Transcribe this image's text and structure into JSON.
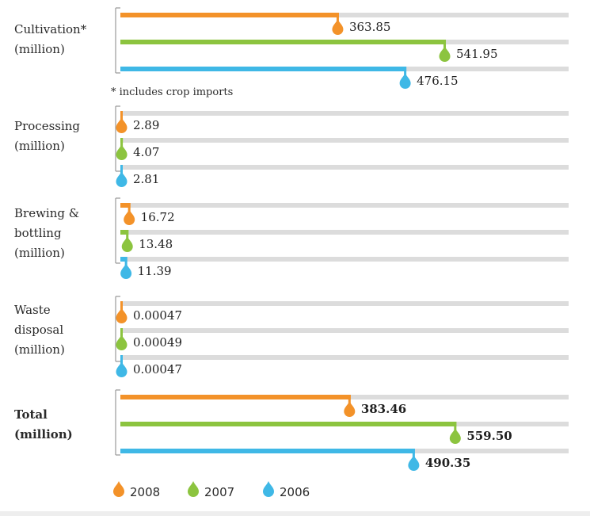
{
  "chart_data": {
    "type": "bar",
    "orientation": "horizontal",
    "colors": {
      "2008": "#f39229",
      "2007": "#8cc43f",
      "2006": "#3fb8e6",
      "track": "#dcdcdc",
      "bracket": "#9a9a9a"
    },
    "groups": [
      {
        "label_lines": [
          "Cultivation*",
          "(million)"
        ],
        "bold": false,
        "scale_max": 600,
        "footnote": "* includes crop imports",
        "bars": [
          {
            "series": "2008",
            "value": 363.85,
            "label": "363.85"
          },
          {
            "series": "2007",
            "value": 541.95,
            "label": "541.95"
          },
          {
            "series": "2006",
            "value": 476.15,
            "label": "476.15"
          }
        ]
      },
      {
        "label_lines": [
          "Processing",
          "(million)"
        ],
        "bold": false,
        "scale_max": 600,
        "bars": [
          {
            "series": "2008",
            "value": 2.89,
            "label": "2.89"
          },
          {
            "series": "2007",
            "value": 4.07,
            "label": "4.07"
          },
          {
            "series": "2006",
            "value": 2.81,
            "label": "2.81"
          }
        ]
      },
      {
        "label_lines": [
          "Brewing &",
          "bottling",
          "(million)"
        ],
        "bold": false,
        "scale_max": 600,
        "bars": [
          {
            "series": "2008",
            "value": 16.72,
            "label": "16.72"
          },
          {
            "series": "2007",
            "value": 13.48,
            "label": "13.48"
          },
          {
            "series": "2006",
            "value": 11.39,
            "label": "11.39"
          }
        ]
      },
      {
        "label_lines": [
          "Waste",
          "disposal",
          "(million)"
        ],
        "bold": false,
        "scale_max": 600,
        "bars": [
          {
            "series": "2008",
            "value": 0.00047,
            "label": "0.00047"
          },
          {
            "series": "2007",
            "value": 0.00049,
            "label": "0.00049"
          },
          {
            "series": "2006",
            "value": 0.00047,
            "label": "0.00047"
          }
        ]
      },
      {
        "label_lines": [
          "Total",
          "(million)"
        ],
        "bold": true,
        "scale_max": 600,
        "bars": [
          {
            "series": "2008",
            "value": 383.46,
            "label": "383.46"
          },
          {
            "series": "2007",
            "value": 559.5,
            "label": "559.50"
          },
          {
            "series": "2006",
            "value": 490.35,
            "label": "490.35"
          }
        ]
      }
    ],
    "legend": {
      "placement": "bottom-left",
      "items": [
        {
          "series": "2008",
          "label": "2008",
          "icon": "droplet-icon"
        },
        {
          "series": "2007",
          "label": "2007",
          "icon": "droplet-icon"
        },
        {
          "series": "2006",
          "label": "2006",
          "icon": "droplet-icon"
        }
      ]
    }
  }
}
